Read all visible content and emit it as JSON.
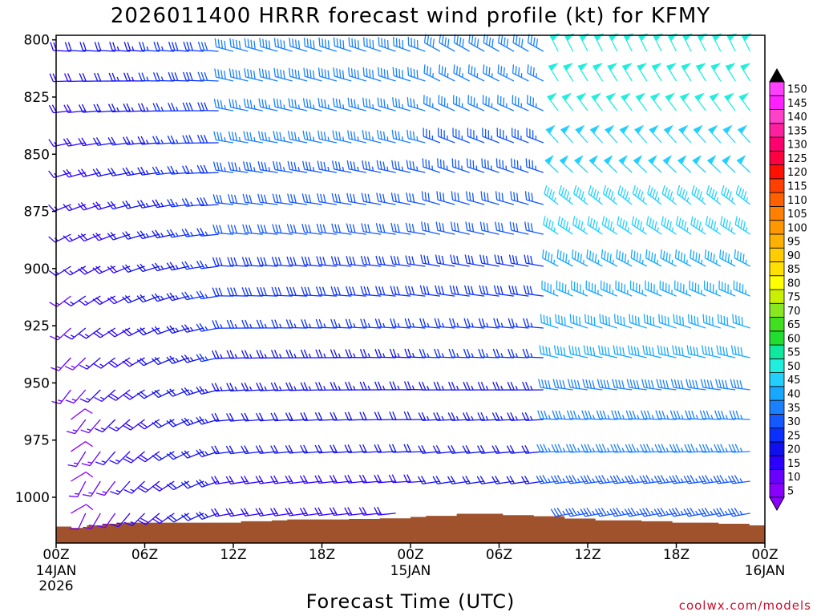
{
  "chart_data": {
    "type": "wind-barb-profile",
    "title": "2026011400 HRRR forecast wind profile (kt) for KFMY",
    "xlabel": "Forecast Time (UTC)",
    "credit": "coolwx.com/models",
    "x_range_hours": [
      0,
      48
    ],
    "x_ticks": [
      {
        "hour": 0,
        "label": "00Z",
        "sub": [
          "14JAN",
          "2026"
        ]
      },
      {
        "hour": 6,
        "label": "06Z",
        "sub": []
      },
      {
        "hour": 12,
        "label": "12Z",
        "sub": []
      },
      {
        "hour": 18,
        "label": "18Z",
        "sub": []
      },
      {
        "hour": 24,
        "label": "00Z",
        "sub": [
          "15JAN"
        ]
      },
      {
        "hour": 30,
        "label": "06Z",
        "sub": []
      },
      {
        "hour": 36,
        "label": "12Z",
        "sub": []
      },
      {
        "hour": 42,
        "label": "18Z",
        "sub": []
      },
      {
        "hour": 48,
        "label": "00Z",
        "sub": [
          "16JAN"
        ]
      }
    ],
    "y_label_unit": "hPa",
    "y_range_hpa": [
      798,
      1020
    ],
    "y_ticks": [
      800,
      825,
      850,
      875,
      900,
      925,
      950,
      975,
      1000
    ],
    "barb_levels_hpa": [
      805,
      818,
      831,
      845,
      858,
      872,
      885,
      899,
      912,
      926,
      939,
      953,
      966,
      980,
      993,
      1007
    ],
    "colorbar": {
      "levels": [
        5,
        10,
        15,
        20,
        25,
        30,
        35,
        40,
        45,
        50,
        55,
        60,
        65,
        70,
        75,
        80,
        85,
        90,
        95,
        100,
        105,
        110,
        115,
        120,
        125,
        130,
        135,
        140,
        145,
        150
      ],
      "colors": [
        "#8a00ff",
        "#6a00ff",
        "#2b00ff",
        "#1010ee",
        "#0a30ff",
        "#1458ff",
        "#1a80ff",
        "#18a8ff",
        "#22d0ff",
        "#22eedd",
        "#10e8a0",
        "#20dd30",
        "#40e020",
        "#88e820",
        "#c8f000",
        "#ffff00",
        "#ffe000",
        "#ffcc00",
        "#ffb000",
        "#ff9800",
        "#ff8000",
        "#ff6000",
        "#ff4000",
        "#ff1000",
        "#ff0040",
        "#ff0070",
        "#ff20a0",
        "#ff40c8",
        "#ff20ff",
        "#ff40ff"
      ]
    },
    "surface_pressure_hpa": [
      1012.8,
      1013.4,
      1012.3,
      1011.6,
      1011.1,
      1011.1,
      1011.1,
      1011.1,
      1011.1,
      1011.1,
      1011.1,
      1011.1,
      1010.5,
      1010.5,
      1010.1,
      1009.7,
      1009.7,
      1009.7,
      1009.7,
      1009.5,
      1009.5,
      1009.2,
      1009.2,
      1008.6,
      1008.1,
      1008.1,
      1007.2,
      1007.2,
      1007.2,
      1007.8,
      1007.8,
      1008.3,
      1008.3,
      1009.3,
      1009.3,
      1010.1,
      1010.1,
      1010.1,
      1010.5,
      1010.5,
      1011.1,
      1011.1,
      1011.1,
      1011.6,
      1011.6,
      1012.3
    ]
  }
}
